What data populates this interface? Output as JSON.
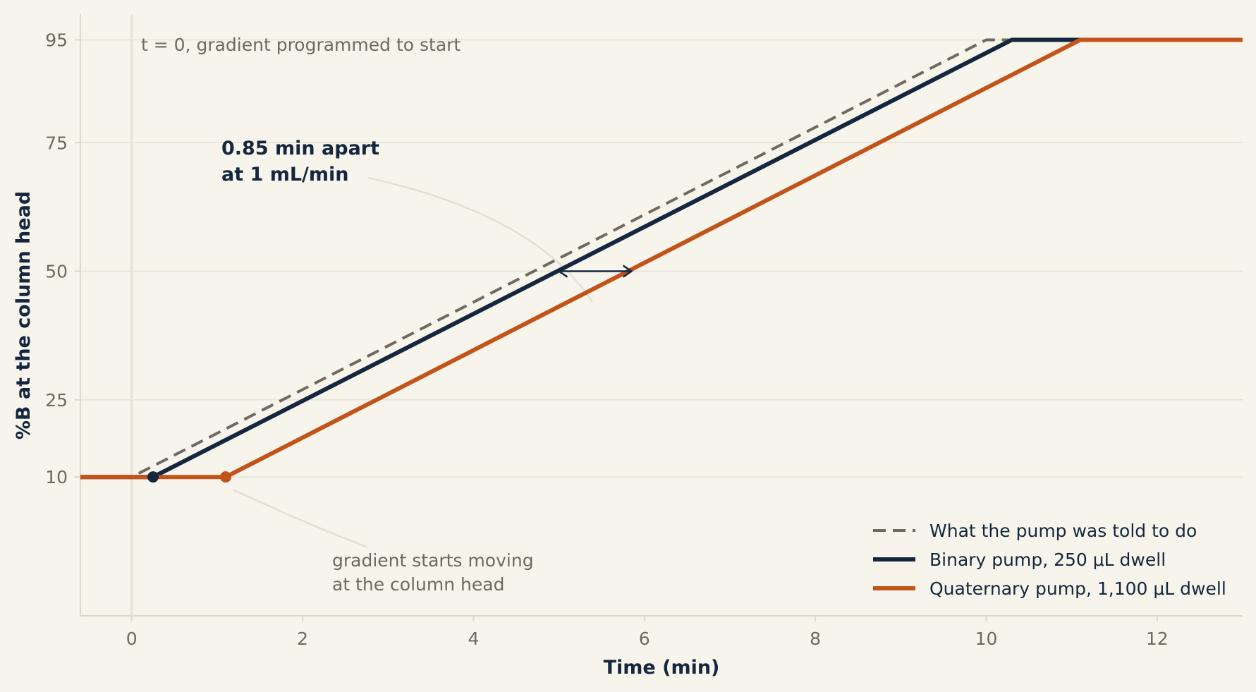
{
  "chart_data": {
    "type": "line",
    "xlabel": "Time (min)",
    "ylabel": "%B at the column head",
    "xlim": [
      -0.6,
      13.0
    ],
    "ylim": [
      -17,
      100
    ],
    "x_ticks": [
      0,
      2,
      4,
      6,
      8,
      10,
      12
    ],
    "y_ticks": [
      10,
      25,
      50,
      75,
      95
    ],
    "grid": "horizontal",
    "legend_position": "bottom-right",
    "series": [
      {
        "name": "What the pump was told to do",
        "color": "#6f6a5f",
        "style": "dashed",
        "points": [
          [
            -0.6,
            10
          ],
          [
            0,
            10
          ],
          [
            10.0,
            95
          ],
          [
            10.3,
            95
          ]
        ]
      },
      {
        "name": "Binary pump, 250 μL dwell",
        "color": "#14273f",
        "style": "solid",
        "points": [
          [
            -0.6,
            10
          ],
          [
            0.25,
            10
          ],
          [
            10.3,
            95
          ],
          [
            11.1,
            95
          ]
        ]
      },
      {
        "name": "Quaternary pump, 1,100 μL dwell",
        "color": "#c2541a",
        "style": "solid",
        "points": [
          [
            -0.6,
            10
          ],
          [
            1.1,
            10
          ],
          [
            11.1,
            95
          ],
          [
            13.0,
            95
          ]
        ]
      }
    ],
    "markers": [
      {
        "x": 0.25,
        "y": 10,
        "color": "#14273f"
      },
      {
        "x": 1.1,
        "y": 10,
        "color": "#c2541a"
      }
    ],
    "annotations": {
      "t0_label": "t = 0, gradient programmed to start",
      "gap_label_line1": "0.85 min apart",
      "gap_label_line2": "at 1 mL/min",
      "start_label_line1": "gradient starts moving",
      "start_label_line2": "at the column head"
    },
    "gap_arrow": {
      "x_from": 5.0,
      "x_to": 5.85,
      "y": 50
    }
  },
  "colors": {
    "background": "#f7f4ec",
    "grid": "#e6e2d6",
    "axis": "#ddd8cb",
    "muted_text": "#6f6a5f",
    "dark": "#14273f",
    "orange": "#c2541a"
  }
}
